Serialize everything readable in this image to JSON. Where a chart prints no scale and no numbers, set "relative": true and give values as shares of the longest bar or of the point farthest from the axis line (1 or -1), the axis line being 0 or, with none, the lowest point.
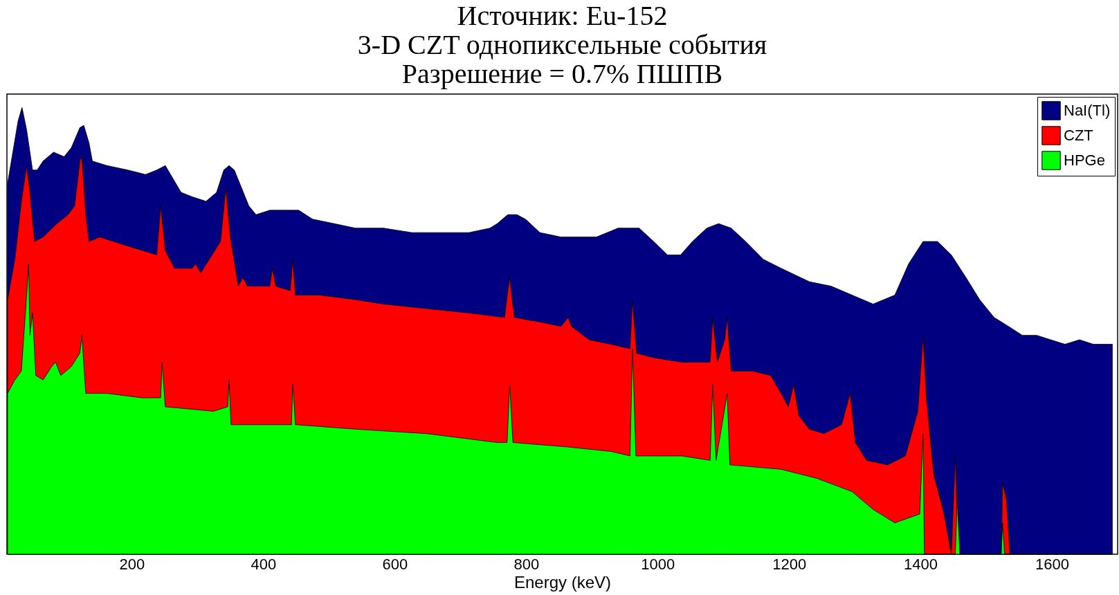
{
  "chart_data": {
    "type": "area",
    "title": "Источник: Eu-152",
    "subtitle": "3-D CZT однопиксельные события\nРазрешение = 0.7% ПШПВ",
    "xlabel": "Energy (keV)",
    "relative": true,
    "legend": "top right",
    "xlim": [
      10,
      1700
    ],
    "xticks": [
      200,
      400,
      600,
      800,
      1000,
      1200,
      1400,
      1600
    ],
    "series": [
      {
        "name": "NaI(Tl)",
        "color": "#000080",
        "x": [
          11,
          19,
          27,
          33,
          40,
          49,
          56,
          65,
          81,
          97,
          108,
          121,
          127,
          135,
          140,
          162,
          194,
          221,
          238,
          251,
          259,
          275,
          292,
          313,
          329,
          340,
          348,
          356,
          367,
          378,
          389,
          410,
          432,
          454,
          475,
          508,
          540,
          583,
          626,
          670,
          713,
          745,
          756,
          772,
          786,
          799,
          821,
          853,
          886,
          907,
          940,
          958,
          972,
          994,
          1015,
          1035,
          1053,
          1075,
          1093,
          1112,
          1134,
          1161,
          1188,
          1231,
          1264,
          1296,
          1328,
          1361,
          1382,
          1404,
          1426,
          1447,
          1469,
          1490,
          1512,
          1534,
          1555,
          1577,
          1598,
          1620,
          1642,
          1663,
          1692
        ],
        "values": [
          0.83,
          0.9,
          0.97,
          1.0,
          0.95,
          0.86,
          0.86,
          0.88,
          0.9,
          0.89,
          0.91,
          0.955,
          0.96,
          0.92,
          0.88,
          0.87,
          0.86,
          0.85,
          0.86,
          0.87,
          0.85,
          0.81,
          0.8,
          0.79,
          0.81,
          0.86,
          0.87,
          0.86,
          0.82,
          0.78,
          0.76,
          0.77,
          0.77,
          0.77,
          0.75,
          0.74,
          0.73,
          0.73,
          0.72,
          0.72,
          0.72,
          0.73,
          0.74,
          0.76,
          0.76,
          0.75,
          0.72,
          0.71,
          0.71,
          0.71,
          0.73,
          0.73,
          0.73,
          0.7,
          0.67,
          0.67,
          0.7,
          0.73,
          0.74,
          0.73,
          0.7,
          0.66,
          0.64,
          0.61,
          0.6,
          0.58,
          0.56,
          0.58,
          0.65,
          0.7,
          0.7,
          0.67,
          0.62,
          0.57,
          0.53,
          0.51,
          0.49,
          0.49,
          0.48,
          0.47,
          0.48,
          0.47,
          0.47
        ]
      },
      {
        "name": "CZT",
        "color": "#ff0000",
        "x": [
          11,
          22,
          32,
          40,
          45,
          52,
          65,
          86,
          103,
          113,
          121,
          124,
          130,
          135,
          151,
          194,
          238,
          244,
          251,
          265,
          292,
          297,
          305,
          335,
          343,
          350,
          362,
          369,
          376,
          410,
          414,
          419,
          441,
          445,
          449,
          486,
          540,
          583,
          648,
          713,
          767,
          775,
          782,
          821,
          853,
          864,
          869,
          896,
          929,
          958,
          962,
          968,
          994,
          1037,
          1080,
          1084,
          1091,
          1102,
          1106,
          1112,
          1145,
          1172,
          1188,
          1199,
          1207,
          1215,
          1231,
          1253,
          1280,
          1293,
          1301,
          1318,
          1350,
          1377,
          1396,
          1404,
          1409,
          1420,
          1436,
          1447,
          1453,
          1458,
          1523,
          1525,
          1531,
          1536,
          1692
        ],
        "values": [
          0.57,
          0.66,
          0.79,
          0.87,
          0.81,
          0.7,
          0.71,
          0.74,
          0.76,
          0.78,
          0.88,
          0.89,
          0.76,
          0.7,
          0.71,
          0.69,
          0.67,
          0.78,
          0.68,
          0.64,
          0.64,
          0.65,
          0.63,
          0.7,
          0.82,
          0.71,
          0.6,
          0.62,
          0.6,
          0.6,
          0.64,
          0.6,
          0.59,
          0.66,
          0.58,
          0.58,
          0.57,
          0.56,
          0.55,
          0.54,
          0.53,
          0.62,
          0.53,
          0.52,
          0.51,
          0.53,
          0.51,
          0.48,
          0.47,
          0.46,
          0.57,
          0.45,
          0.44,
          0.43,
          0.43,
          0.53,
          0.43,
          0.48,
          0.53,
          0.41,
          0.41,
          0.4,
          0.36,
          0.33,
          0.38,
          0.31,
          0.28,
          0.27,
          0.29,
          0.36,
          0.25,
          0.21,
          0.2,
          0.22,
          0.32,
          0.49,
          0.35,
          0.18,
          0.09,
          0,
          0.22,
          0,
          0,
          0.16,
          0.12,
          0,
          0
        ]
      },
      {
        "name": "HPGe",
        "color": "#00ff00",
        "x": [
          11,
          22,
          32,
          40,
          43,
          45,
          49,
          54,
          65,
          78,
          84,
          92,
          108,
          121,
          124,
          130,
          162,
          216,
          244,
          246,
          251,
          324,
          346,
          348,
          351,
          443,
          445,
          449,
          540,
          648,
          756,
          771,
          775,
          780,
          864,
          929,
          958,
          962,
          967,
          1037,
          1080,
          1084,
          1089,
          1106,
          1110,
          1188,
          1242,
          1296,
          1328,
          1361,
          1399,
          1404,
          1406,
          1453,
          1456,
          1460,
          1523,
          1525,
          1528,
          1692
        ],
        "values": [
          0.36,
          0.39,
          0.41,
          0.58,
          0.65,
          0.49,
          0.54,
          0.4,
          0.39,
          0.42,
          0.43,
          0.4,
          0.42,
          0.45,
          0.49,
          0.36,
          0.36,
          0.35,
          0.35,
          0.43,
          0.33,
          0.32,
          0.33,
          0.39,
          0.29,
          0.29,
          0.38,
          0.29,
          0.28,
          0.27,
          0.25,
          0.25,
          0.38,
          0.25,
          0.24,
          0.23,
          0.22,
          0.46,
          0.22,
          0.22,
          0.21,
          0.38,
          0.21,
          0.36,
          0.2,
          0.19,
          0.17,
          0.14,
          0.1,
          0.07,
          0.09,
          0.27,
          0,
          0,
          0.12,
          0,
          0,
          0.07,
          0,
          0
        ]
      }
    ]
  }
}
